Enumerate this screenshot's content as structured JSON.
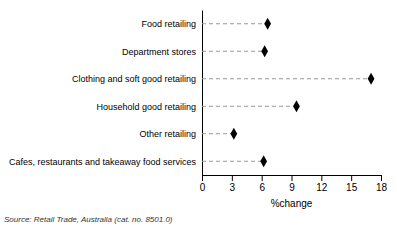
{
  "chart_data": {
    "type": "lollipop",
    "orientation": "horizontal",
    "categories": [
      "Cafes, restaurants and takeaway food services",
      "Other retailing",
      "Household good retailing",
      "Clothing and soft good retailing",
      "Department stores",
      "Food retailing"
    ],
    "values": [
      6.2,
      3.2,
      9.5,
      17.0,
      6.3,
      6.6
    ],
    "color": "#000000",
    "marker": "diamond",
    "line_style": "dashed",
    "xlabel": "%change",
    "xlim": [
      0,
      18
    ],
    "xticks": [
      0,
      3,
      6,
      9,
      12,
      15,
      18
    ],
    "annotations": [
      "Source: Retail Trade, Australia (cat. no. 8501.0)"
    ]
  }
}
